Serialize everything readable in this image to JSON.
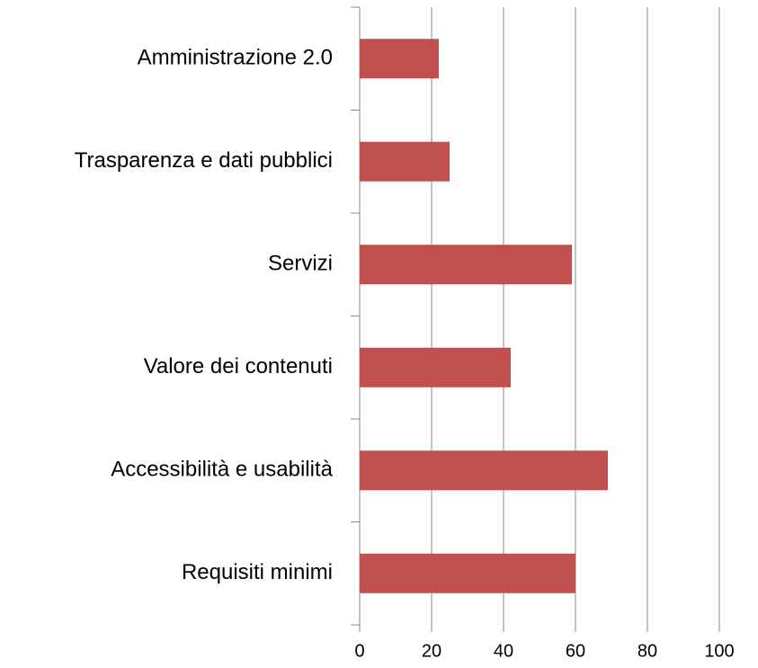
{
  "chart_data": {
    "type": "bar",
    "orientation": "horizontal",
    "categories": [
      "Amministrazione 2.0",
      "Trasparenza e dati pubblici",
      "Servizi",
      "Valore dei contenuti",
      "Accessibilità e usabilità",
      "Requisiti minimi"
    ],
    "values": [
      22,
      25,
      59,
      42,
      69,
      60
    ],
    "color": "#c0504d",
    "xlim": [
      0,
      100
    ],
    "xticks": [
      0,
      20,
      40,
      60,
      80,
      100
    ],
    "grid": true
  }
}
